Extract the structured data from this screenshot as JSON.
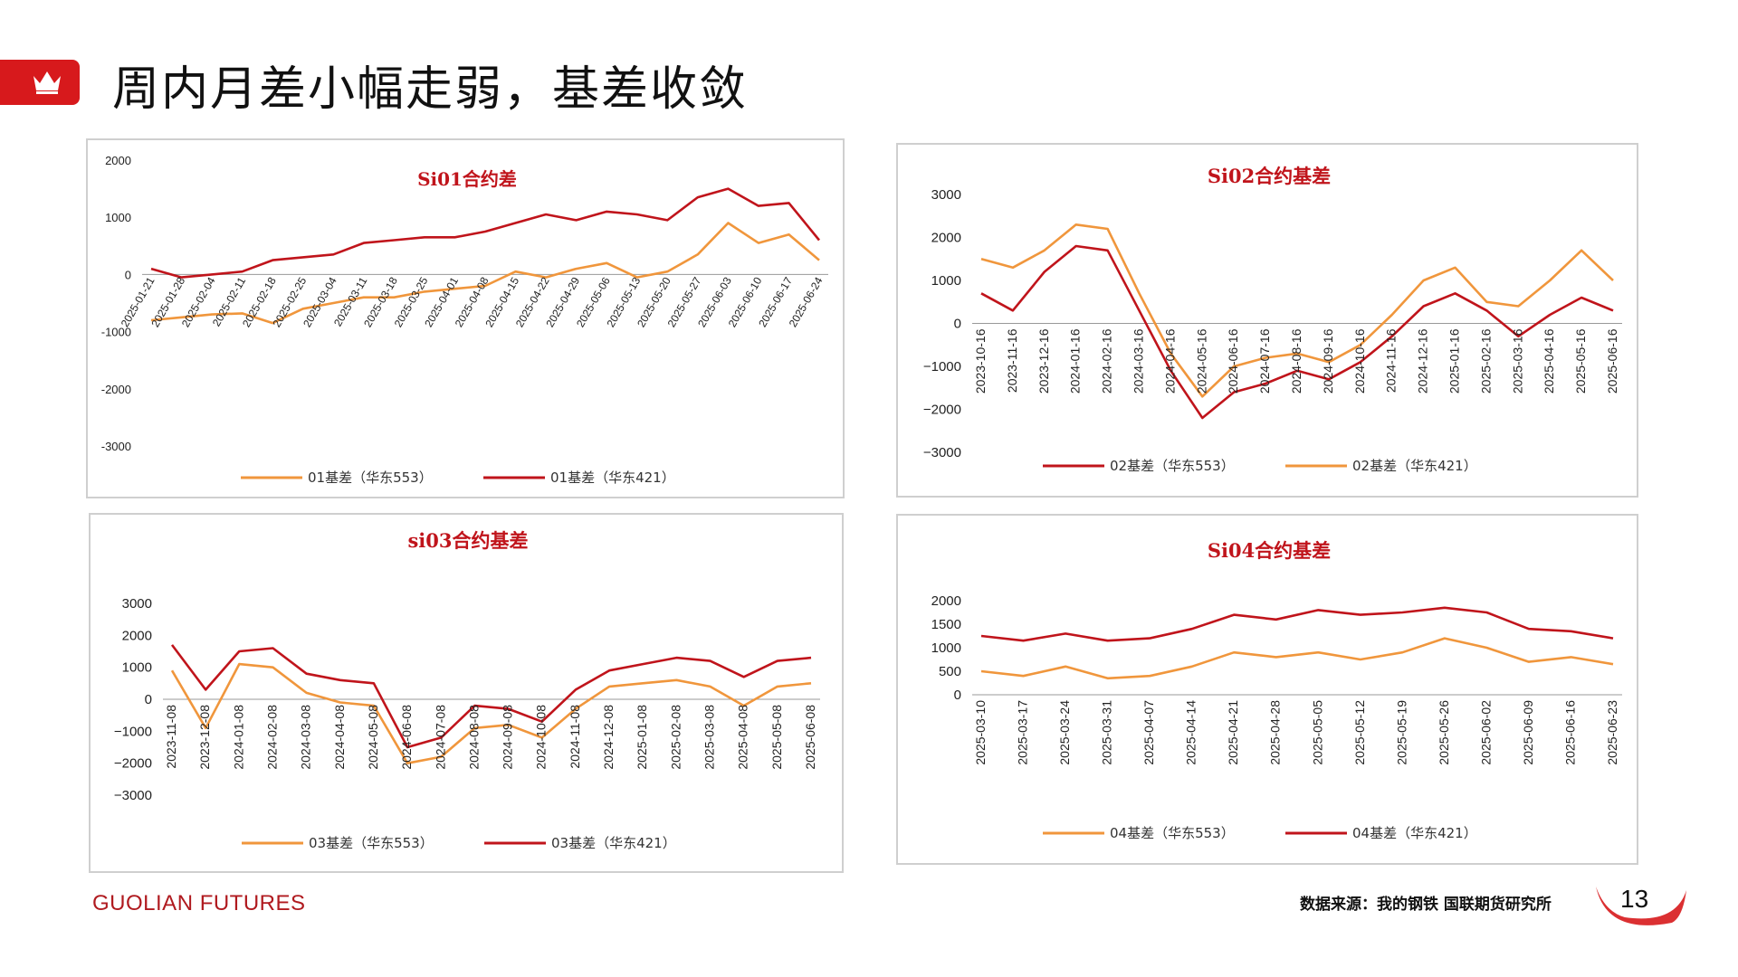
{
  "page": {
    "title": "周内月差小幅走弱，基差收敛",
    "brand": "GUOLIAN FUTURES",
    "source": "数据来源：我的钢铁  国联期货研究所",
    "page_number": "13",
    "colors": {
      "accent": "#d7191c",
      "dark_red": "#c0141b",
      "orange": "#f0963c"
    }
  },
  "chart_data": [
    {
      "type": "line",
      "title": "Si01合约差",
      "x": [
        "2025-01-21",
        "2025-01-28",
        "2025-02-04",
        "2025-02-11",
        "2025-02-18",
        "2025-02-25",
        "2025-03-04",
        "2025-03-11",
        "2025-03-18",
        "2025-03-25",
        "2025-04-01",
        "2025-04-08",
        "2025-04-15",
        "2025-04-22",
        "2025-04-29",
        "2025-05-06",
        "2025-05-13",
        "2025-05-20",
        "2025-05-27",
        "2025-06-03",
        "2025-06-10",
        "2025-06-17",
        "2025-06-24"
      ],
      "x_ticks": [
        "2025-01-21",
        "2025-01-28",
        "2025-02-04",
        "2025-02-11",
        "2025-02-18",
        "2025-02-25",
        "2025-03-04",
        "2025-03-11",
        "2025-03-18",
        "2025-03-25",
        "2025-04-01",
        "2025-04-08",
        "2025-04-15",
        "2025-04-22",
        "2025-04-29",
        "2025-05-06",
        "2025-05-13",
        "2025-05-20",
        "2025-05-27",
        "2025-06-03",
        "2025-06-10",
        "2025-06-17",
        "2025-06-24"
      ],
      "y_ticks": [
        "2000",
        "1000",
        "0",
        "-1000",
        "-2000",
        "-3000"
      ],
      "ylim": [
        -3000,
        2000
      ],
      "series": [
        {
          "name": "01基差（华东553）",
          "color": "#f0963c",
          "values": [
            -800,
            -750,
            -700,
            -680,
            -850,
            -600,
            -500,
            -400,
            -400,
            -300,
            -250,
            -200,
            50,
            -50,
            100,
            200,
            -50,
            50,
            350,
            900,
            550,
            700,
            250
          ]
        },
        {
          "name": "01基差（华东421）",
          "color": "#c0141b",
          "values": [
            100,
            -50,
            0,
            50,
            250,
            300,
            350,
            550,
            600,
            650,
            650,
            750,
            900,
            1050,
            950,
            1100,
            1050,
            950,
            1350,
            1500,
            1200,
            1250,
            600
          ]
        }
      ]
    },
    {
      "type": "line",
      "title": "Si02合约基差",
      "x": [
        "2023-10-16",
        "2023-11-16",
        "2023-12-16",
        "2024-01-16",
        "2024-02-16",
        "2024-03-16",
        "2024-04-16",
        "2024-05-16",
        "2024-06-16",
        "2024-07-16",
        "2024-08-16",
        "2024-09-16",
        "2024-10-16",
        "2024-11-16",
        "2024-12-16",
        "2025-01-16",
        "2025-02-16",
        "2025-03-16",
        "2025-04-16",
        "2025-05-16",
        "2025-06-16"
      ],
      "x_ticks": [
        "2023-10-16",
        "2023-11-16",
        "2023-12-16",
        "2024-01-16",
        "2024-02-16",
        "2024-03-16",
        "2024-04-16",
        "2024-05-16",
        "2024-06-16",
        "2024-07-16",
        "2024-08-16",
        "2024-09-16",
        "2024-10-16",
        "2024-11-16",
        "2024-12-16",
        "2025-01-16",
        "2025-02-16",
        "2025-03-16",
        "2025-04-16",
        "2025-05-16",
        "2025-06-16"
      ],
      "y_ticks": [
        "3000",
        "2000",
        "1000",
        "0",
        "−1000",
        "−2000",
        "−3000"
      ],
      "ylim": [
        -3000,
        3000
      ],
      "series": [
        {
          "name": "02基差（华东553）",
          "color": "#c0141b",
          "values": [
            700,
            300,
            1200,
            1800,
            1700,
            300,
            -1100,
            -2200,
            -1600,
            -1400,
            -1100,
            -1300,
            -900,
            -300,
            400,
            700,
            300,
            -300,
            200,
            600,
            300
          ]
        },
        {
          "name": "02基差（华东421）",
          "color": "#f0963c",
          "values": [
            1500,
            1300,
            1700,
            2300,
            2200,
            700,
            -700,
            -1700,
            -1000,
            -800,
            -700,
            -900,
            -500,
            200,
            1000,
            1300,
            500,
            400,
            1000,
            1700,
            1000
          ]
        }
      ]
    },
    {
      "type": "line",
      "title": "si03合约基差",
      "x": [
        "2023-11-08",
        "2023-12-08",
        "2024-01-08",
        "2024-02-08",
        "2024-03-08",
        "2024-04-08",
        "2024-05-08",
        "2024-06-08",
        "2024-07-08",
        "2024-08-08",
        "2024-09-08",
        "2024-10-08",
        "2024-11-08",
        "2024-12-08",
        "2025-01-08",
        "2025-02-08",
        "2025-03-08",
        "2025-04-08",
        "2025-05-08",
        "2025-06-08"
      ],
      "x_ticks": [
        "2023-11-08",
        "2023-12-08",
        "2024-01-08",
        "2024-02-08",
        "2024-03-08",
        "2024-04-08",
        "2024-05-08",
        "2024-06-08",
        "2024-07-08",
        "2024-08-08",
        "2024-09-08",
        "2024-10-08",
        "2024-11-08",
        "2024-12-08",
        "2025-01-08",
        "2025-02-08",
        "2025-03-08",
        "2025-04-08",
        "2025-05-08",
        "2025-06-08"
      ],
      "y_ticks": [
        "3000",
        "2000",
        "1000",
        "0",
        "−1000",
        "−2000",
        "−3000"
      ],
      "ylim": [
        -3000,
        3000
      ],
      "series": [
        {
          "name": "03基差（华东553）",
          "color": "#f0963c",
          "values": [
            900,
            -900,
            1100,
            1000,
            200,
            -100,
            -200,
            -2000,
            -1800,
            -900,
            -800,
            -1200,
            -300,
            400,
            500,
            600,
            400,
            -200,
            400,
            500
          ]
        },
        {
          "name": "03基差（华东421）",
          "color": "#c0141b",
          "values": [
            1700,
            300,
            1500,
            1600,
            800,
            600,
            500,
            -1500,
            -1200,
            -200,
            -300,
            -700,
            300,
            900,
            1100,
            1300,
            1200,
            700,
            1200,
            1300
          ]
        }
      ]
    },
    {
      "type": "line",
      "title": "Si04合约基差",
      "x": [
        "2025-03-10",
        "2025-03-17",
        "2025-03-24",
        "2025-03-31",
        "2025-04-07",
        "2025-04-14",
        "2025-04-21",
        "2025-04-28",
        "2025-05-05",
        "2025-05-12",
        "2025-05-19",
        "2025-05-26",
        "2025-06-02",
        "2025-06-09",
        "2025-06-16",
        "2025-06-23"
      ],
      "x_ticks": [
        "2025-03-10",
        "2025-03-17",
        "2025-03-24",
        "2025-03-31",
        "2025-04-07",
        "2025-04-14",
        "2025-04-21",
        "2025-04-28",
        "2025-05-05",
        "2025-05-12",
        "2025-05-19",
        "2025-05-26",
        "2025-06-02",
        "2025-06-09",
        "2025-06-16",
        "2025-06-23"
      ],
      "y_ticks": [
        "2000",
        "1500",
        "1000",
        "500",
        "0"
      ],
      "ylim": [
        0,
        2000
      ],
      "series": [
        {
          "name": "04基差（华东553）",
          "color": "#f0963c",
          "values": [
            500,
            400,
            600,
            350,
            400,
            600,
            900,
            800,
            900,
            750,
            900,
            1200,
            1000,
            700,
            800,
            650
          ]
        },
        {
          "name": "04基差（华东421）",
          "color": "#c0141b",
          "values": [
            1250,
            1150,
            1300,
            1150,
            1200,
            1400,
            1700,
            1600,
            1800,
            1700,
            1750,
            1850,
            1750,
            1400,
            1350,
            1200
          ]
        }
      ]
    }
  ]
}
